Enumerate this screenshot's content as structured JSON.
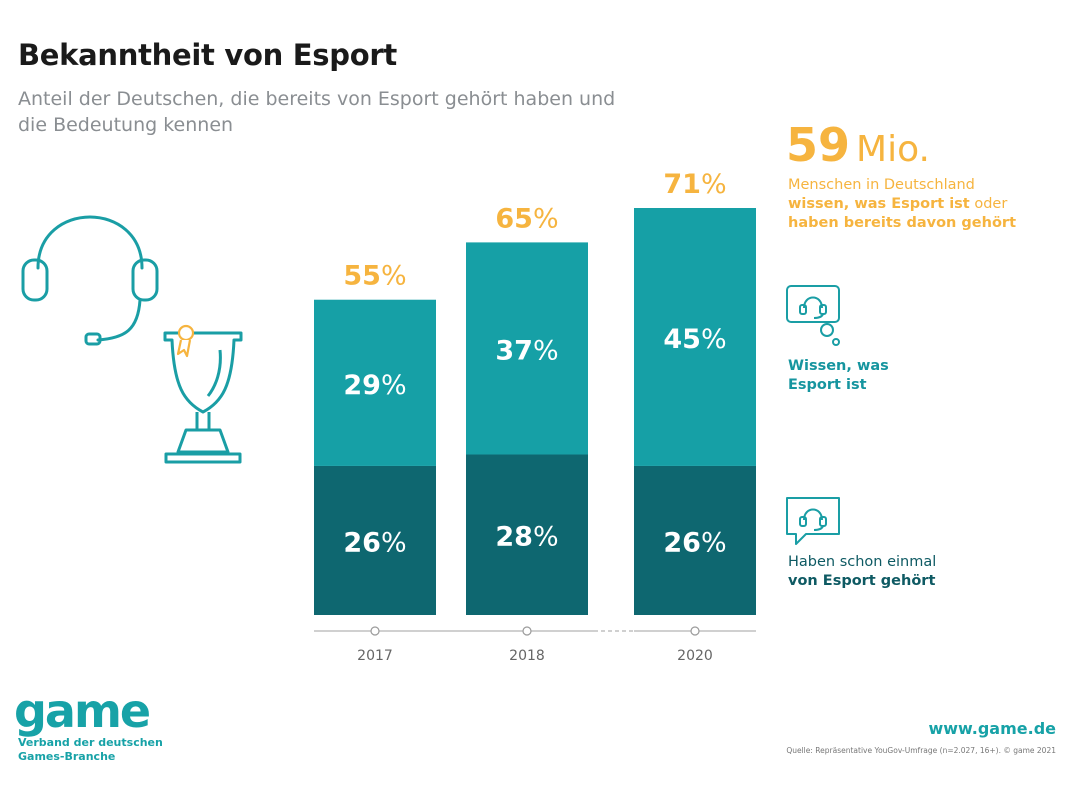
{
  "header": {
    "title": "Bekanntheit von Esport",
    "subtitle": "Anteil der Deutschen, die bereits von Esport gehört haben und die Bedeutung kennen"
  },
  "highlight": {
    "number": "59",
    "unit": "Mio.",
    "desc_plain": "Menschen in Deutschland",
    "desc_bold": "wissen, was Esport ist",
    "desc_plain2": " oder",
    "desc_bold2": "haben bereits davon gehört"
  },
  "legend": {
    "know": "Wissen, was Esport ist",
    "heard_plain": "Haben schon einmal",
    "heard_bold": "von Esport gehört"
  },
  "chart_data": {
    "type": "bar",
    "stacked": true,
    "categories": [
      "2017",
      "2018",
      "2020"
    ],
    "unit": "%",
    "series": [
      {
        "name": "Haben schon einmal von Esport gehört",
        "values": [
          26,
          28,
          26
        ],
        "color": "#0e6770"
      },
      {
        "name": "Wissen, was Esport ist",
        "values": [
          29,
          37,
          45
        ],
        "color": "#16a0a6"
      }
    ],
    "totals": [
      55,
      65,
      71
    ],
    "total_color": "#f6b43f",
    "ylim": [
      0,
      71
    ]
  },
  "footer": {
    "logo": "game",
    "logo_sub": "Verband der deutschen Games-Branche",
    "url": "www.game.de",
    "source": "Quelle: Repräsentative YouGov-Umfrage (n=2.027, 16+). © game 2021"
  },
  "icons": {
    "headset": "headset-icon",
    "trophy": "trophy-icon",
    "speech_know": "speech-bubble-headset-icon",
    "speech_heard": "chat-bubble-headset-icon"
  },
  "colors": {
    "teal_light": "#16a0a6",
    "teal_dark": "#0e6770",
    "orange": "#f6b43f",
    "icon_stroke": "#1a9ea5"
  }
}
